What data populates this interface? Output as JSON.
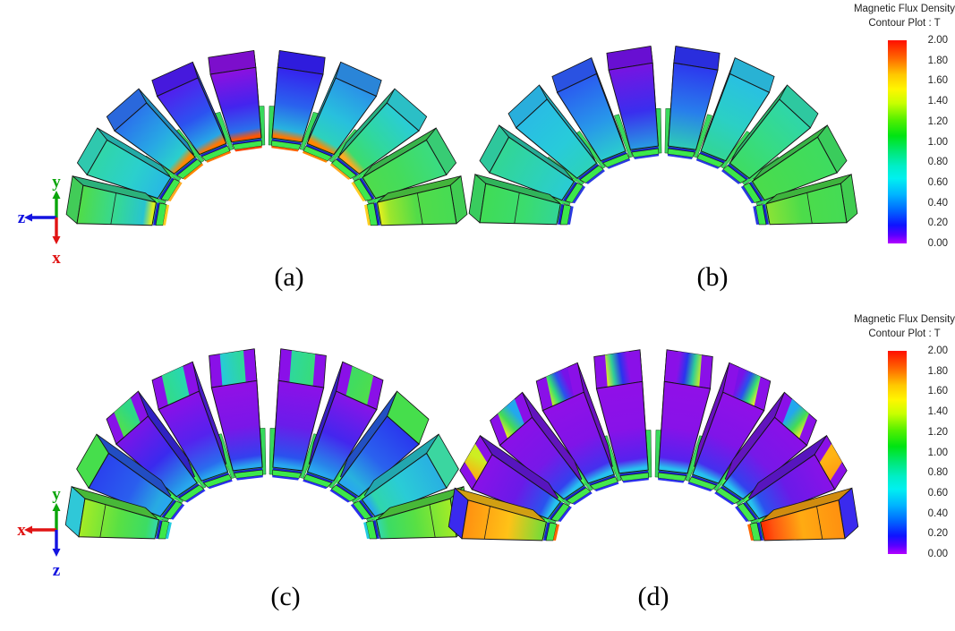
{
  "figure": {
    "background": "#ffffff"
  },
  "legends": [
    {
      "title_line1": "Magnetic Flux Density",
      "title_line2": "Contour Plot : T",
      "ticks": [
        "2.00",
        "1.80",
        "1.60",
        "1.40",
        "1.20",
        "1.00",
        "0.80",
        "0.60",
        "0.40",
        "0.20",
        "0.00"
      ]
    },
    {
      "title_line1": "Magnetic Flux Density",
      "title_line2": "Contour Plot : T",
      "ticks": [
        "2.00",
        "1.80",
        "1.60",
        "1.40",
        "1.20",
        "1.00",
        "0.80",
        "0.60",
        "0.40",
        "0.20",
        "0.00"
      ]
    }
  ],
  "colorbar_gradient": [
    [
      0,
      "#ff0f00"
    ],
    [
      9,
      "#ff6a00"
    ],
    [
      17,
      "#ffc800"
    ],
    [
      24,
      "#fff600"
    ],
    [
      31,
      "#c8ff00"
    ],
    [
      39,
      "#55f000"
    ],
    [
      47,
      "#00e412"
    ],
    [
      55,
      "#00e87a"
    ],
    [
      62,
      "#00eec8"
    ],
    [
      68,
      "#00f0f0"
    ],
    [
      76,
      "#00b4ff"
    ],
    [
      84,
      "#0064ff"
    ],
    [
      91,
      "#0f14ff"
    ],
    [
      96,
      "#5a00ff"
    ],
    [
      100,
      "#b400ff"
    ]
  ],
  "axis_triads": [
    {
      "up": {
        "label": "y",
        "color": "#0aa50a"
      },
      "left": {
        "label": "z",
        "color": "#1414e0"
      },
      "down": {
        "label": "x",
        "color": "#e01414"
      }
    },
    {
      "up": {
        "label": "y",
        "color": "#0aa50a"
      },
      "left": {
        "label": "x",
        "color": "#e01414"
      },
      "down": {
        "label": "z",
        "color": "#1414e0"
      }
    }
  ],
  "chart_data": {
    "type": "heatmap",
    "title": "Magnetic Flux Density",
    "subtitle": "Contour Plot : T",
    "unit": "T",
    "scale": {
      "min": 0.0,
      "max": 2.0,
      "tick_values": [
        2.0,
        1.8,
        1.6,
        1.4,
        1.2,
        1.0,
        0.8,
        0.6,
        0.4,
        0.2,
        0.0
      ]
    },
    "legend_position": "right",
    "panels": [
      {
        "label": "(a)",
        "segments": [
          {
            "face": [
              "#50dc48",
              "#35d896",
              "#28c4d0"
            ],
            "top": "#42cc58",
            "plate": "#3ee84e",
            "fringe": "#ffcc22",
            "glow": "#d8ee22"
          },
          {
            "face": [
              "#30d6a8",
              "#2bd0cc",
              "#28b8e4"
            ],
            "top": "#2fc8ae",
            "plate": "#3ee84e",
            "fringe": "#ffaa22"
          },
          {
            "face": [
              "#2a74ec",
              "#28a8e4",
              "#2ad0cc"
            ],
            "top": "#2a68dc",
            "plate": "#3ee84e",
            "fringe": "#ff8800",
            "glow": "#ff8800"
          },
          {
            "face": [
              "#5020ee",
              "#2c52f0",
              "#27a6e6"
            ],
            "top": "#4619dd",
            "plate": "#3ee84e",
            "fringe": "#ff7700",
            "glow": "#ff7700"
          },
          {
            "face": [
              "#8c10e0",
              "#4424ee",
              "#2a70ec"
            ],
            "top": "#7c0ecc",
            "plate": "#3ee84e",
            "fringe": "#ff4400",
            "glow": "#ff5500"
          },
          {
            "face": [
              "#3523ee",
              "#2a62ee",
              "#28b4de"
            ],
            "top": "#2f1cdd",
            "plate": "#3ee84e",
            "fringe": "#ff6600",
            "glow": "#ff7700"
          },
          {
            "face": [
              "#2a92e8",
              "#28c0dd",
              "#2cd2bc"
            ],
            "top": "#2a85d8",
            "plate": "#3ee84e",
            "fringe": "#ff8800",
            "glow": "#ff8800"
          },
          {
            "face": [
              "#2accd6",
              "#30d89e",
              "#3cdc6e"
            ],
            "top": "#2bbfc6",
            "plate": "#3ee84e",
            "fringe": "#ffaa22",
            "glow": "#ffaa22"
          },
          {
            "face": [
              "#3adc82",
              "#44dc5c",
              "#4edc4c"
            ],
            "top": "#38cc74",
            "plate": "#3ee84e",
            "fringe": "#ffcc22"
          },
          {
            "face": [
              "#46dc54",
              "#52dc48",
              "#9ce62c"
            ],
            "top": "#40cc52",
            "plate": "#3ee84e",
            "fringe": "#ffd022",
            "glow": "#d8ee22"
          }
        ]
      },
      {
        "label": "(b)",
        "segments": [
          {
            "face": [
              "#40dc55",
              "#3bdc6e",
              "#32d696"
            ],
            "top": "#39cc5e",
            "plate": "#3ce84a",
            "fringe": "#2a3ae0"
          },
          {
            "face": [
              "#32d694",
              "#2dd2b6",
              "#2accd4"
            ],
            "top": "#2ec79c",
            "plate": "#3ce84a",
            "fringe": "#2a3ae0"
          },
          {
            "face": [
              "#29bce4",
              "#28cbda",
              "#2cd2ba"
            ],
            "top": "#29aedc",
            "plate": "#3ce84a",
            "fringe": "#2a3ae0"
          },
          {
            "face": [
              "#2a5cf0",
              "#2896ea",
              "#2bccce"
            ],
            "top": "#2a52e2",
            "plate": "#3ce84a",
            "fringe": "#2a3ae0"
          },
          {
            "face": [
              "#7714e2",
              "#3a2eee",
              "#289ce2"
            ],
            "top": "#680fd2",
            "plate": "#3ce84a",
            "fringe": "#2a3ae0"
          },
          {
            "face": [
              "#2d38ee",
              "#287eec",
              "#2eccb6"
            ],
            "top": "#2a2edd",
            "plate": "#3ce84a",
            "fringe": "#2a3ae0"
          },
          {
            "face": [
              "#29c0e2",
              "#2bd0c4",
              "#32d695"
            ],
            "top": "#29b2d4",
            "plate": "#3ce84a",
            "fringe": "#2a3ae0"
          },
          {
            "face": [
              "#2fd6aa",
              "#37dc82",
              "#3edc62"
            ],
            "top": "#2ec8a0",
            "plate": "#3ce84a",
            "fringe": "#2a3ae0"
          },
          {
            "face": [
              "#3edc60",
              "#44dc55",
              "#4bdc4b"
            ],
            "top": "#3acc5c",
            "plate": "#3ce84a",
            "fringe": "#2a3ae0"
          },
          {
            "face": [
              "#44dc55",
              "#4cdc4a",
              "#8ae336"
            ],
            "top": "#40cc50",
            "plate": "#3ce84a",
            "fringe": "#2a3ae0"
          }
        ]
      },
      {
        "label": "(c)",
        "segments": [
          {
            "face": [
              "#a4ec26",
              "#58e044",
              "#3cdc64"
            ],
            "top": "#2fc8d8",
            "plate": "#3ce84a",
            "fringe": "#22cce0",
            "glow": "#35d8a0"
          },
          {
            "face": [
              "#2a42ee",
              "#2a5eee",
              "#28aae2"
            ],
            "top": "#46de4c",
            "plate": "#3ce84a",
            "fringe": "#2a30ee",
            "glow": "#28a8ee"
          },
          {
            "face": [
              "#7a14e8",
              "#3a2aee",
              "#288ce8"
            ],
            "top": "#8812e8",
            "band": [
              "#55e046",
              "#2ed886"
            ],
            "plate": "#3ce84a",
            "fringe": "#2a30ee",
            "glow": "#28a8ee"
          },
          {
            "face": [
              "#8a10e8",
              "#5522ee",
              "#2a6cee"
            ],
            "top": "#8a10e8",
            "band": [
              "#33dc84",
              "#29d8ac"
            ],
            "plate": "#3ce84a",
            "fringe": "#2a30ee",
            "glow": "#28a8ee"
          },
          {
            "face": [
              "#9210e6",
              "#7a16e8",
              "#3340ee"
            ],
            "top": "#8a10e8",
            "band": [
              "#26cadd",
              "#30d898"
            ],
            "plate": "#3ce84a",
            "fringe": "#2a30ee",
            "glow": "#28a8ee"
          },
          {
            "face": [
              "#8c10e8",
              "#6a1cea",
              "#2a52ee"
            ],
            "top": "#8a10e8",
            "band": [
              "#2ed89c",
              "#38dc78"
            ],
            "plate": "#3ce84a",
            "fringe": "#2a30ee",
            "glow": "#28a8ee"
          },
          {
            "face": [
              "#8814e8",
              "#4426ee",
              "#2884ea"
            ],
            "top": "#8a10e8",
            "band": [
              "#40dc60",
              "#50de4a"
            ],
            "plate": "#3ce84a",
            "fringe": "#2a30ee",
            "glow": "#28a8ee"
          },
          {
            "face": [
              "#2a38ee",
              "#2a62ee",
              "#28b2de"
            ],
            "top": "#46de4c",
            "plate": "#3ce84a",
            "fringe": "#2a30ee",
            "glow": "#28a8ee"
          },
          {
            "face": [
              "#29b0e2",
              "#2accd6",
              "#2fd6ac"
            ],
            "top": "#3bd6a0",
            "plate": "#3ce84a",
            "fringe": "#2a30ee",
            "glow": "#28a8ee"
          },
          {
            "face": [
              "#a4ec26",
              "#58e044",
              "#3cdc64"
            ],
            "top": "#4cde4a",
            "plate": "#3ce84a",
            "fringe": "#22cce0",
            "glow": "#35d8a0"
          }
        ]
      },
      {
        "label": "(d)",
        "segments": [
          {
            "face": [
              "#ff9010",
              "#ffc217",
              "#70dd38"
            ],
            "top": "#3a2aee",
            "plate": "#44e84c",
            "fringe": "#ff6600"
          },
          {
            "face": [
              "#8812e8",
              "#6a1ae8",
              "#2a52ee"
            ],
            "top": "#8a10e8",
            "band": [
              "#ffaa11",
              "#cdee22"
            ],
            "plate": "#44e84c",
            "fringe": "#2a30ee",
            "glow": "#27c2ee"
          },
          {
            "face": [
              "#8a10e8",
              "#7718e8",
              "#3340ee"
            ],
            "top": "#8a10e8",
            "band": [
              "#ffee22",
              "#44dc55",
              "#22a8ee"
            ],
            "plate": "#44e84c",
            "fringe": "#2a30ee",
            "glow": "#27c2ee"
          },
          {
            "face": [
              "#9010e8",
              "#8014e8",
              "#4430ee"
            ],
            "top": "#8a10e8",
            "band": [
              "#cdee22",
              "#33dc77",
              "#2a50ee",
              "#7712e8"
            ],
            "plate": "#44e84c",
            "fringe": "#2a30ee",
            "glow": "#27c2ee"
          },
          {
            "face": [
              "#9010e8",
              "#8812e8",
              "#5522ee"
            ],
            "top": "#8a10e8",
            "band": [
              "#eeee22",
              "#2ecc99",
              "#2a33ee",
              "#8812e8"
            ],
            "plate": "#44e84c",
            "fringe": "#2a30ee",
            "glow": "#27c2ee"
          },
          {
            "face": [
              "#9010e8",
              "#8812e8",
              "#5522ee"
            ],
            "top": "#8a10e8",
            "band": [
              "#8812e8",
              "#2a33ee",
              "#2ecc99",
              "#cdee22"
            ],
            "plate": "#44e84c",
            "fringe": "#2a30ee",
            "glow": "#27c2ee"
          },
          {
            "face": [
              "#9010e8",
              "#8014e8",
              "#4430ee"
            ],
            "top": "#8a10e8",
            "band": [
              "#7712e8",
              "#2a50ee",
              "#33dc77",
              "#ffee22"
            ],
            "plate": "#44e84c",
            "fringe": "#2a30ee",
            "glow": "#27c2ee"
          },
          {
            "face": [
              "#8a10e8",
              "#7718e8",
              "#3340ee"
            ],
            "top": "#8a10e8",
            "band": [
              "#22a8ee",
              "#44dc55",
              "#ffee22"
            ],
            "plate": "#44e84c",
            "fringe": "#2a30ee",
            "glow": "#27c2ee"
          },
          {
            "face": [
              "#8812e8",
              "#6a1ae8",
              "#2a52ee"
            ],
            "top": "#8a10e8",
            "band": [
              "#ffb414",
              "#ff9912"
            ],
            "plate": "#44e84c",
            "fringe": "#2a30ee",
            "glow": "#27c2ee"
          },
          {
            "face": [
              "#ff9010",
              "#ffab12",
              "#ff5510"
            ],
            "top": "#3a2aee",
            "plate": "#44e84c",
            "fringe": "#ff6600",
            "glow": "#ff3300"
          }
        ]
      }
    ]
  }
}
